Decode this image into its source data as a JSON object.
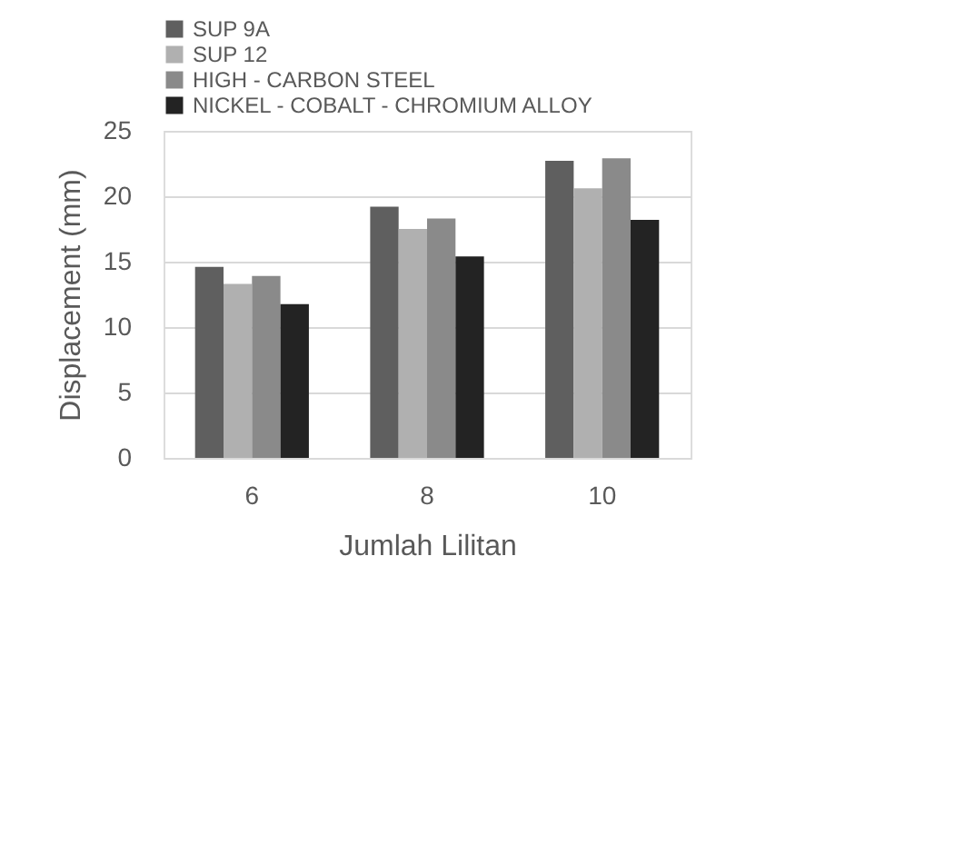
{
  "chart_data": {
    "type": "bar",
    "xlabel": "Jumlah Lilitan",
    "ylabel": "Displacement (mm)",
    "categories": [
      "6",
      "8",
      "10"
    ],
    "series": [
      {
        "name": "SUP 9A",
        "color": "#5f5f5f",
        "values": [
          14.6,
          19.2,
          22.7
        ]
      },
      {
        "name": "SUP 12",
        "color": "#b0b0b0",
        "values": [
          13.3,
          17.5,
          20.6
        ]
      },
      {
        "name": "HIGH - CARBON STEEL",
        "color": "#8a8a8a",
        "values": [
          13.9,
          18.3,
          22.9
        ]
      },
      {
        "name": "NICKEL - COBALT - CHROMIUM ALLOY",
        "color": "#232323",
        "values": [
          11.75,
          15.4,
          18.2
        ]
      }
    ],
    "ylim": [
      0,
      25
    ],
    "yticks": [
      0,
      5,
      10,
      15,
      20,
      25
    ],
    "grid": "y",
    "legend": "top"
  }
}
